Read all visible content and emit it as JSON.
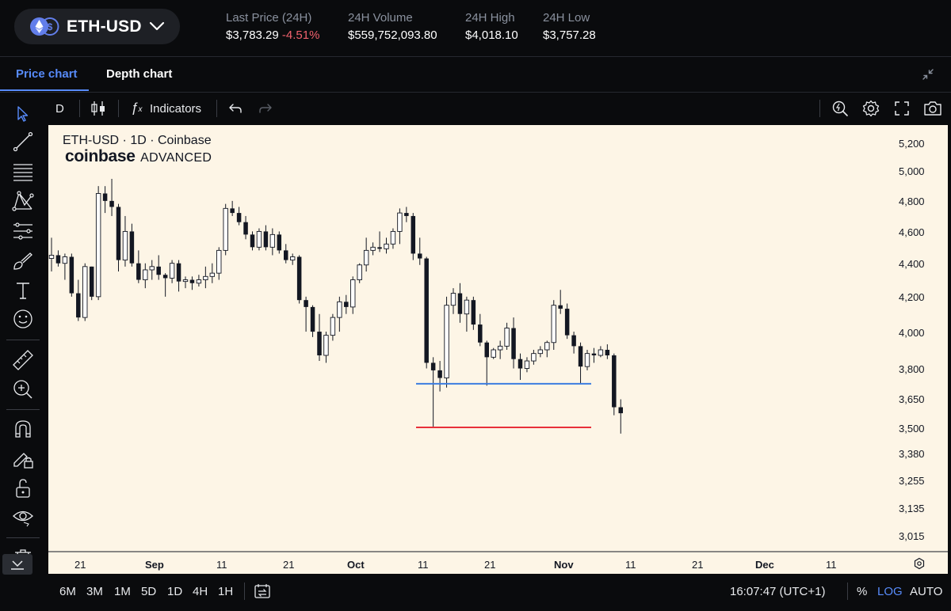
{
  "header": {
    "pair": "ETH-USD",
    "stats": [
      {
        "label": "Last Price (24H)",
        "value": "$3,783.29",
        "change": "-4.51%"
      },
      {
        "label": "24H Volume",
        "value": "$559,752,093.80"
      },
      {
        "label": "24H High",
        "value": "$4,018.10"
      },
      {
        "label": "24H Low",
        "value": "$3,757.28"
      }
    ]
  },
  "tabs": [
    {
      "label": "Price chart",
      "active": true
    },
    {
      "label": "Depth chart",
      "active": false
    }
  ],
  "toolbar": {
    "interval": "D",
    "indicators_label": "Indicators"
  },
  "left_tools": [
    "cursor-icon",
    "trend-line-icon",
    "fib-retracement-icon",
    "pattern-icon",
    "prediction-icon",
    "brush-icon",
    "text-icon",
    "emoji-icon",
    "ruler-icon",
    "zoom-in-icon",
    "magnet-icon",
    "lock-drawing-icon",
    "unlock-icon",
    "eye-icon",
    "trash-icon"
  ],
  "colors": {
    "accent": "#578bfa",
    "negative": "#f0616d",
    "chart_bg": "#fdf5e6",
    "support_line": "#3b7de0",
    "low_line": "#e8303a"
  },
  "chart": {
    "title": "ETH-USD · 1D · Coinbase",
    "brand_name": "coinbase",
    "brand_suffix": "ADVANCED"
  },
  "chart_data": {
    "type": "candlestick",
    "title": "ETH-USD · 1D · Coinbase",
    "x_tick_labels": [
      "21",
      "Sep",
      "11",
      "21",
      "Oct",
      "11",
      "21",
      "Nov",
      "11",
      "21",
      "Dec",
      "11"
    ],
    "y_tick_labels": [
      "5,200",
      "5,000",
      "4,800",
      "4,600",
      "4,400",
      "4,200",
      "4,000",
      "3,800",
      "3,650",
      "3,500",
      "3,380",
      "3,255",
      "3,135",
      "3,015"
    ],
    "scale": "log",
    "horizontal_lines": [
      {
        "price": 3720,
        "color": "#3b7de0"
      },
      {
        "price": 3500,
        "color": "#e8303a"
      }
    ],
    "candles": [
      [
        4430,
        4560,
        4350,
        4450
      ],
      [
        4450,
        4480,
        4380,
        4400
      ],
      [
        4400,
        4460,
        4300,
        4440
      ],
      [
        4440,
        4460,
        4200,
        4220
      ],
      [
        4220,
        4300,
        4060,
        4080
      ],
      [
        4080,
        4400,
        4060,
        4380
      ],
      [
        4380,
        4380,
        4180,
        4200
      ],
      [
        4200,
        4900,
        4180,
        4850
      ],
      [
        4850,
        4900,
        4720,
        4800
      ],
      [
        4800,
        4950,
        4700,
        4760
      ],
      [
        4760,
        4780,
        4350,
        4420
      ],
      [
        4420,
        4700,
        4380,
        4600
      ],
      [
        4600,
        4650,
        4380,
        4400
      ],
      [
        4400,
        4480,
        4280,
        4300
      ],
      [
        4300,
        4400,
        4250,
        4360
      ],
      [
        4360,
        4420,
        4300,
        4380
      ],
      [
        4380,
        4450,
        4300,
        4330
      ],
      [
        4330,
        4340,
        4200,
        4310
      ],
      [
        4310,
        4420,
        4280,
        4400
      ],
      [
        4400,
        4420,
        4230,
        4290
      ],
      [
        4290,
        4320,
        4250,
        4300
      ],
      [
        4300,
        4320,
        4240,
        4280
      ],
      [
        4280,
        4330,
        4260,
        4300
      ],
      [
        4300,
        4380,
        4250,
        4320
      ],
      [
        4320,
        4400,
        4280,
        4340
      ],
      [
        4340,
        4500,
        4300,
        4480
      ],
      [
        4480,
        4780,
        4450,
        4750
      ],
      [
        4750,
        4800,
        4700,
        4720
      ],
      [
        4720,
        4760,
        4640,
        4660
      ],
      [
        4660,
        4700,
        4550,
        4580
      ],
      [
        4580,
        4600,
        4480,
        4500
      ],
      [
        4500,
        4620,
        4480,
        4600
      ],
      [
        4600,
        4640,
        4480,
        4500
      ],
      [
        4500,
        4620,
        4450,
        4580
      ],
      [
        4580,
        4600,
        4460,
        4480
      ],
      [
        4480,
        4520,
        4400,
        4420
      ],
      [
        4420,
        4460,
        4390,
        4440
      ],
      [
        4440,
        4450,
        4160,
        4180
      ],
      [
        4180,
        4200,
        4000,
        4140
      ],
      [
        4140,
        4150,
        3970,
        4000
      ],
      [
        4000,
        4100,
        3840,
        3870
      ],
      [
        3870,
        4000,
        3830,
        3980
      ],
      [
        3980,
        4100,
        3950,
        4080
      ],
      [
        4080,
        4200,
        4000,
        4170
      ],
      [
        4170,
        4210,
        4100,
        4140
      ],
      [
        4140,
        4320,
        4100,
        4300
      ],
      [
        4300,
        4400,
        4280,
        4390
      ],
      [
        4390,
        4560,
        4350,
        4480
      ],
      [
        4480,
        4530,
        4450,
        4500
      ],
      [
        4500,
        4600,
        4470,
        4490
      ],
      [
        4490,
        4560,
        4460,
        4520
      ],
      [
        4520,
        4620,
        4490,
        4600
      ],
      [
        4600,
        4750,
        4520,
        4720
      ],
      [
        4720,
        4760,
        4660,
        4700
      ],
      [
        4700,
        4720,
        4420,
        4460
      ],
      [
        4460,
        4560,
        4390,
        4430
      ],
      [
        4430,
        4440,
        3800,
        3830
      ],
      [
        3830,
        3860,
        3500,
        3790
      ],
      [
        3790,
        3840,
        3680,
        3750
      ],
      [
        3750,
        4200,
        3700,
        4150
      ],
      [
        4150,
        4250,
        4100,
        4220
      ],
      [
        4220,
        4280,
        4050,
        4100
      ],
      [
        4100,
        4200,
        4000,
        4180
      ],
      [
        4180,
        4200,
        4010,
        4040
      ],
      [
        4040,
        4100,
        3920,
        3940
      ],
      [
        3940,
        3950,
        3710,
        3860
      ],
      [
        3860,
        3910,
        3850,
        3900
      ],
      [
        3900,
        3950,
        3850,
        3920
      ],
      [
        3920,
        4050,
        3900,
        4020
      ],
      [
        4020,
        4080,
        3800,
        3850
      ],
      [
        3850,
        3880,
        3740,
        3800
      ],
      [
        3800,
        3860,
        3780,
        3840
      ],
      [
        3840,
        3900,
        3820,
        3880
      ],
      [
        3880,
        3920,
        3860,
        3900
      ],
      [
        3900,
        3950,
        3860,
        3940
      ],
      [
        3940,
        4180,
        3900,
        4150
      ],
      [
        4150,
        4240,
        4100,
        4130
      ],
      [
        4130,
        4160,
        3960,
        3980
      ],
      [
        3980,
        4000,
        3880,
        3920
      ],
      [
        3920,
        3940,
        3720,
        3810
      ],
      [
        3810,
        3900,
        3790,
        3880
      ],
      [
        3880,
        3910,
        3830,
        3870
      ],
      [
        3870,
        3920,
        3860,
        3900
      ],
      [
        3900,
        3930,
        3850,
        3870
      ],
      [
        3870,
        3880,
        3560,
        3600
      ],
      [
        3600,
        3640,
        3470,
        3570
      ]
    ]
  },
  "axis": {
    "y": [
      "5,200",
      "5,000",
      "4,800",
      "4,600",
      "4,400",
      "4,200",
      "4,000",
      "3,800",
      "3,650",
      "3,500",
      "3,380",
      "3,255",
      "3,135",
      "3,015"
    ],
    "x": [
      "21",
      "Sep",
      "11",
      "21",
      "Oct",
      "11",
      "21",
      "Nov",
      "11",
      "21",
      "Dec",
      "11"
    ]
  },
  "bottom": {
    "timeframes": [
      "6M",
      "3M",
      "1M",
      "5D",
      "1D",
      "4H",
      "1H"
    ],
    "clock": "16:07:47 (UTC+1)",
    "percent": "%",
    "log": "LOG",
    "auto": "AUTO"
  }
}
